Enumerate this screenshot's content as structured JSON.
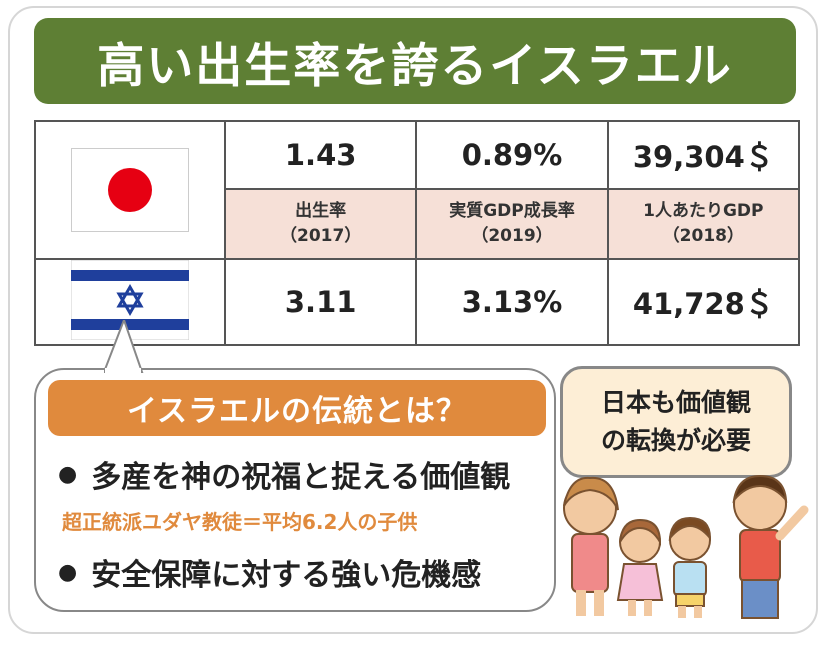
{
  "title": "高い出生率を誇るイスラエル",
  "table": {
    "japan": {
      "flag": "japan-flag",
      "birth_rate": "1.43",
      "gdp_growth": "0.89%",
      "gdp_per_capita": "39,304＄"
    },
    "labels": {
      "birth_rate": "出生率",
      "birth_rate_year": "（2017）",
      "gdp_growth": "実質GDP成長率",
      "gdp_growth_year": "（2019）",
      "gdp_per_capita": "1人あたりGDP",
      "gdp_per_capita_year": "（2018）"
    },
    "israel": {
      "flag": "israel-flag",
      "birth_rate": "3.11",
      "gdp_growth": "3.13%",
      "gdp_per_capita": "41,728＄"
    }
  },
  "tradition": {
    "heading": "イスラエルの伝統とは？",
    "bullet1": "多産を神の祝福と捉える価値観",
    "bullet1_note": "超正統派ユダヤ教徒＝平均6.2人の子供",
    "bullet2": "安全保障に対する強い危機感"
  },
  "speech": {
    "line1": "日本も価値観",
    "line2": "の転換が必要"
  },
  "colors": {
    "title_bg": "#5e7f34",
    "orange": "#e08a3d",
    "label_bg": "#f6e0d7",
    "speech_bg": "#fdeed6",
    "jp_red": "#e60012",
    "il_blue": "#1f3f9c"
  }
}
